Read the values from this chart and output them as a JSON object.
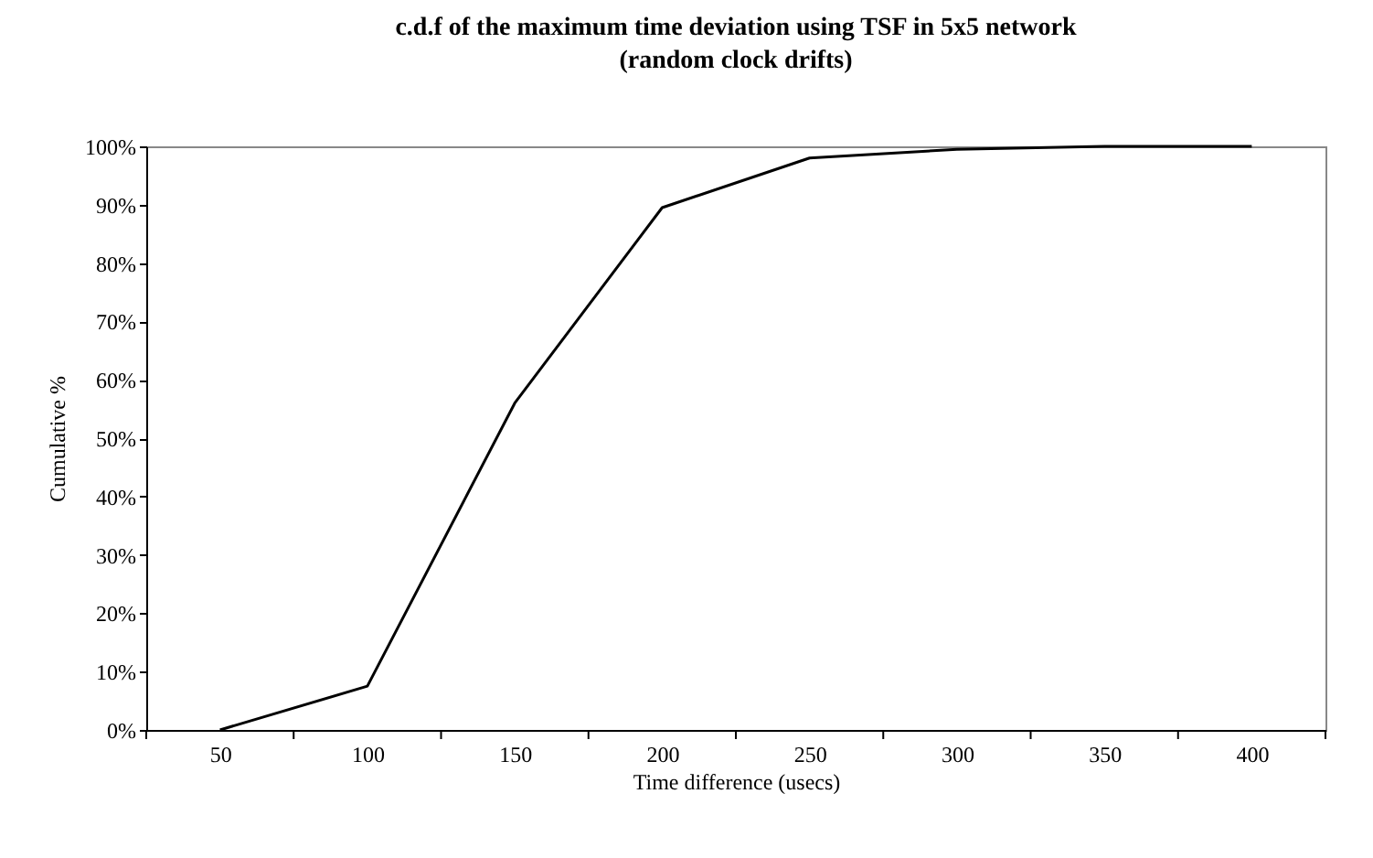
{
  "chart_data": {
    "type": "line",
    "title": "c.d.f of the maximum time deviation using TSF in 5x5 network",
    "subtitle": "(random clock drifts)",
    "xlabel": "Time difference (usecs)",
    "ylabel": "Cumulative %",
    "categories": [
      "50",
      "100",
      "150",
      "200",
      "250",
      "300",
      "350",
      "400"
    ],
    "series": [
      {
        "color": "#000000",
        "values": [
          0,
          7.5,
          56,
          89.5,
          98,
          99.5,
          100,
          100
        ]
      }
    ],
    "ylim": [
      0,
      100
    ],
    "yticks": [
      {
        "value": 0,
        "label": "0%"
      },
      {
        "value": 10,
        "label": "10%"
      },
      {
        "value": 20,
        "label": "20%"
      },
      {
        "value": 30,
        "label": "30%"
      },
      {
        "value": 40,
        "label": "40%"
      },
      {
        "value": 50,
        "label": "50%"
      },
      {
        "value": 60,
        "label": "60%"
      },
      {
        "value": 70,
        "label": "70%"
      },
      {
        "value": 80,
        "label": "80%"
      },
      {
        "value": 90,
        "label": "90%"
      },
      {
        "value": 100,
        "label": "100%"
      }
    ],
    "grid": false,
    "legend": false,
    "marker": "none",
    "line_style": "solid"
  }
}
